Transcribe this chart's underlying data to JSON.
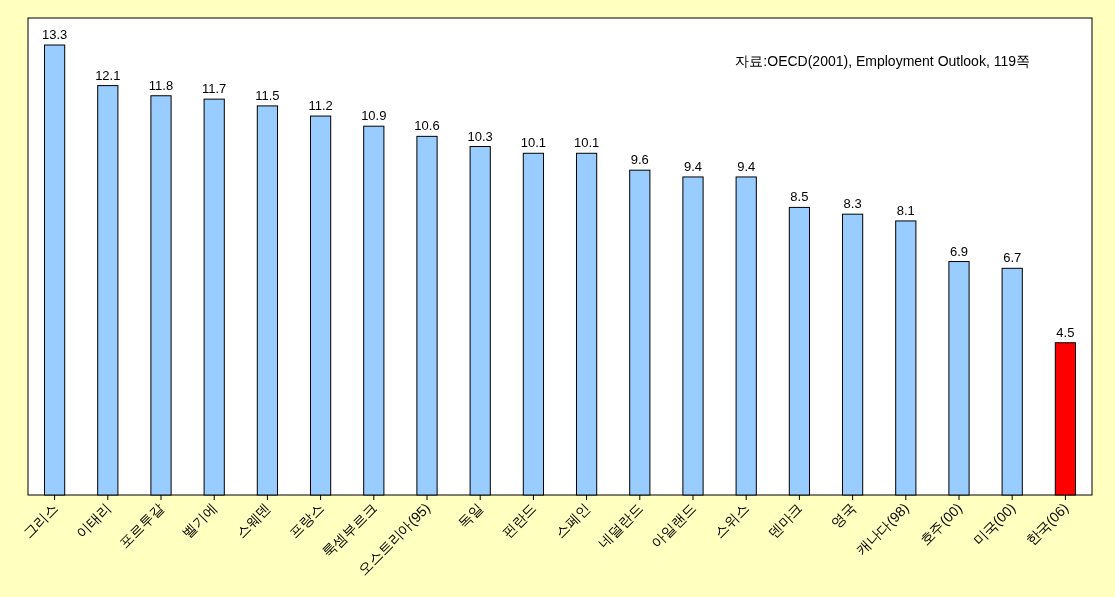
{
  "chart_data": {
    "type": "bar",
    "categories": [
      "그리스",
      "이태리",
      "포르투갈",
      "벨기에",
      "스웨덴",
      "프랑스",
      "룩셈부르크",
      "오스트리아(95)",
      "독일",
      "핀란드",
      "스페인",
      "네덜란드",
      "아일랜드",
      "스위스",
      "덴마크",
      "영국",
      "캐나다(98)",
      "호주(00)",
      "미국(00)",
      "한국(06)"
    ],
    "values": [
      13.3,
      12.1,
      11.8,
      11.7,
      11.5,
      11.2,
      10.9,
      10.6,
      10.3,
      10.1,
      10.1,
      9.6,
      9.4,
      9.4,
      8.5,
      8.3,
      8.1,
      6.9,
      6.7,
      4.5
    ],
    "colors": [
      "#99ccff",
      "#99ccff",
      "#99ccff",
      "#99ccff",
      "#99ccff",
      "#99ccff",
      "#99ccff",
      "#99ccff",
      "#99ccff",
      "#99ccff",
      "#99ccff",
      "#99ccff",
      "#99ccff",
      "#99ccff",
      "#99ccff",
      "#99ccff",
      "#99ccff",
      "#99ccff",
      "#99ccff",
      "#ff0000"
    ],
    "data_labels": true,
    "annotations": [
      "자료:OECD(2001), Employment Outlook, 119쪽"
    ]
  }
}
